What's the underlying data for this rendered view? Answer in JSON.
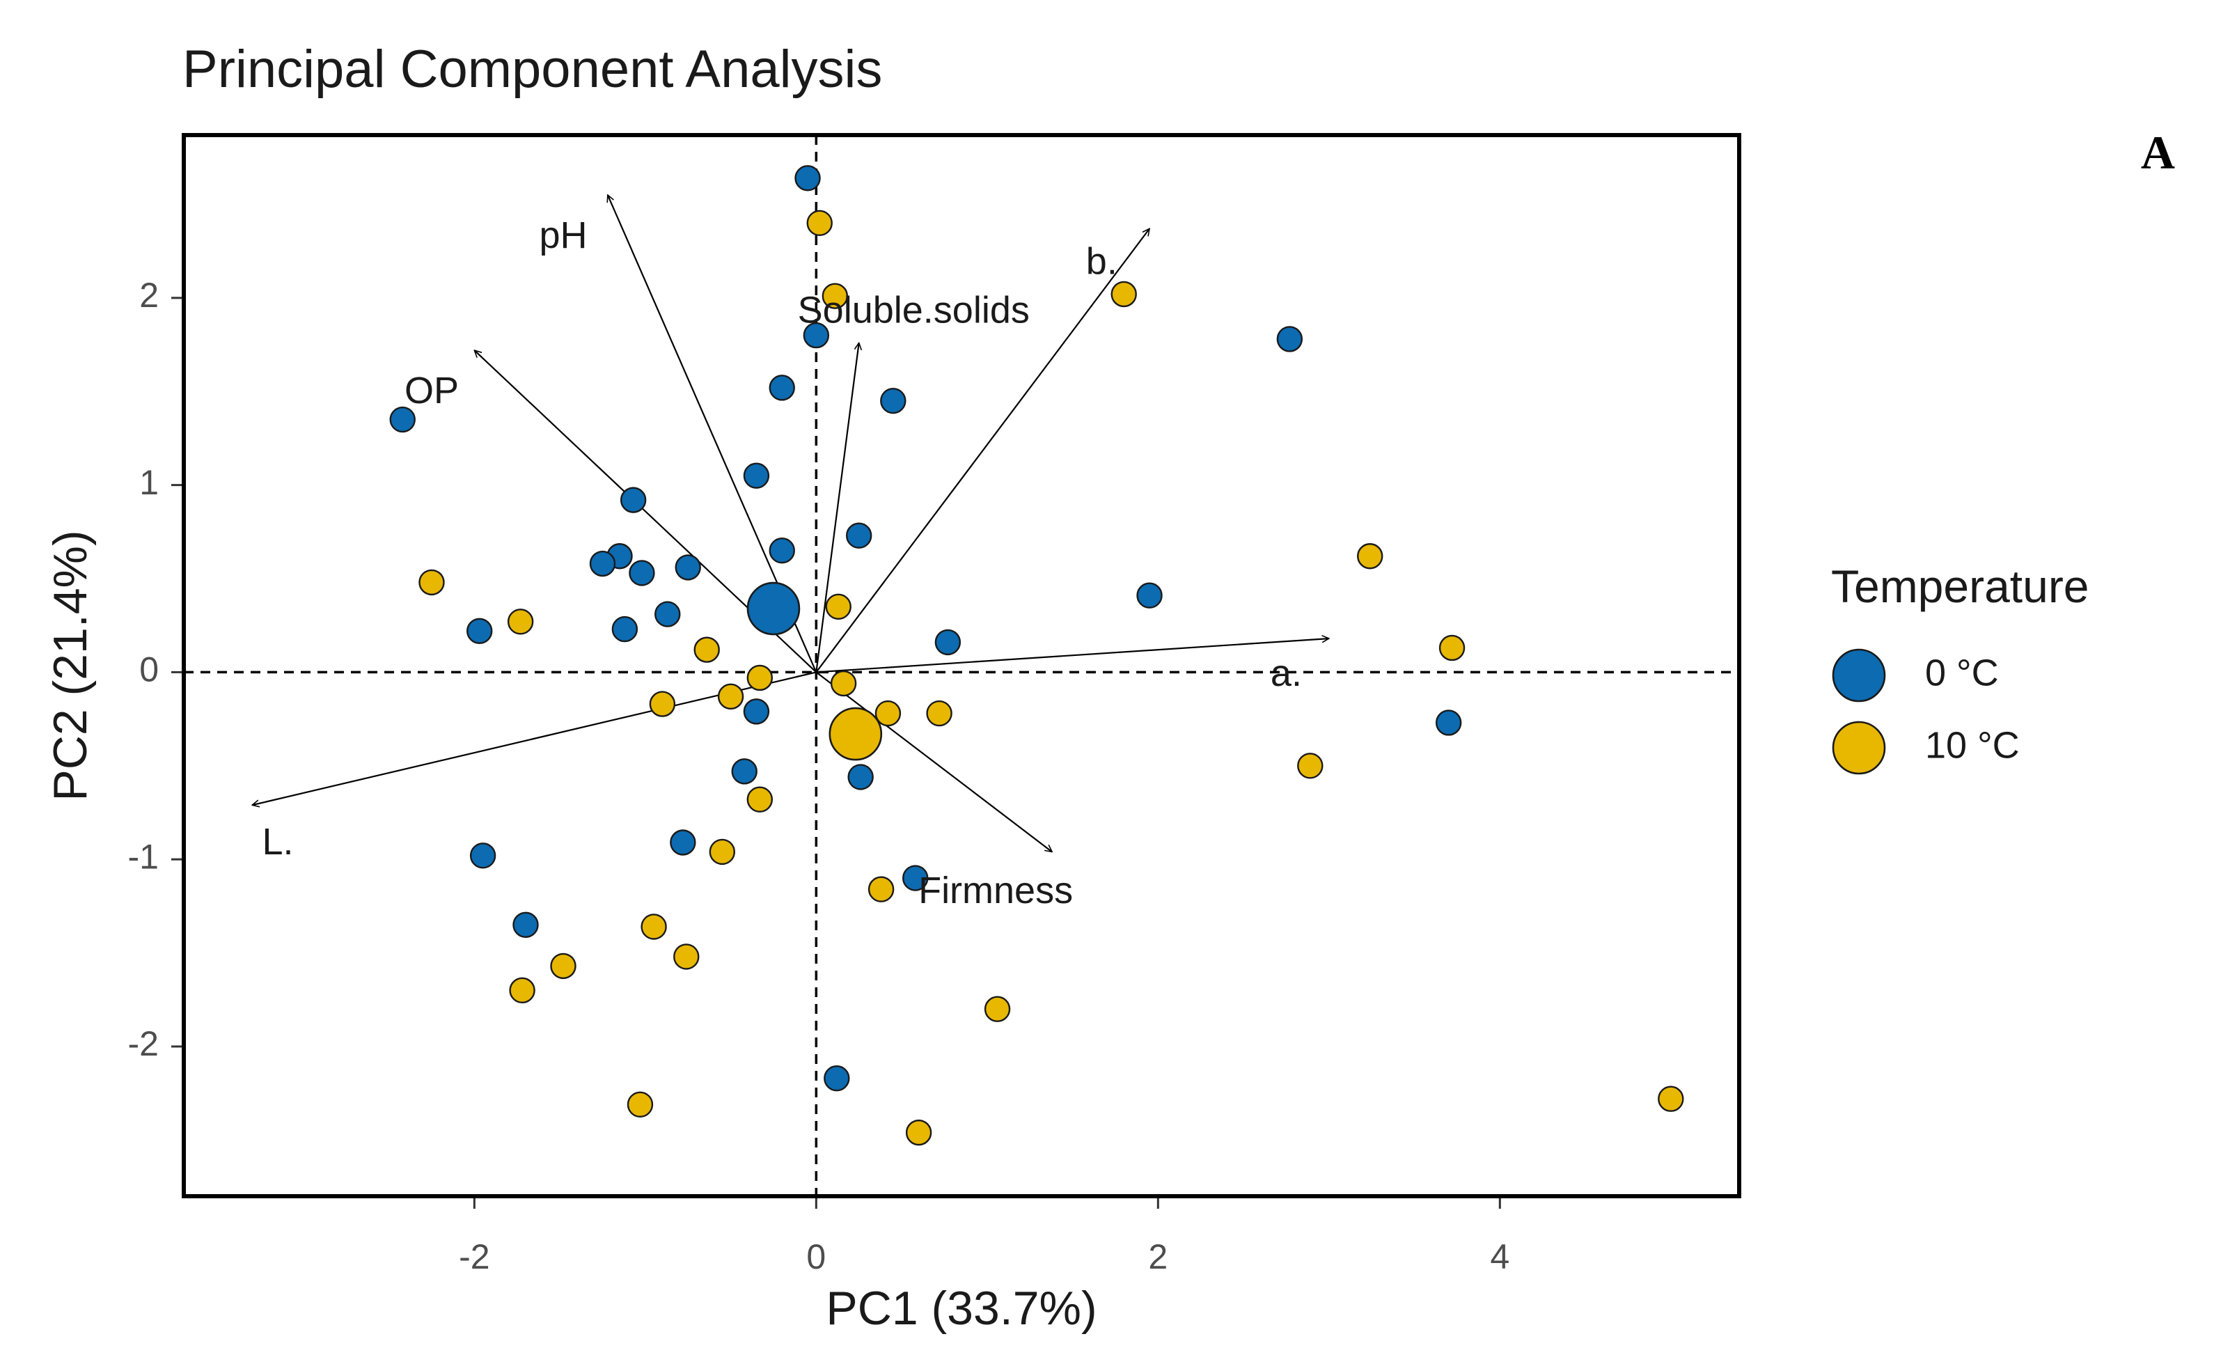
{
  "chart_data": {
    "type": "scatter",
    "title": "Principal Component Analysis",
    "panel_label": "A",
    "xlabel": "PC1 (33.7%)",
    "ylabel": "PC2 (21.4%)",
    "xlim": [
      -3.7,
      5.4
    ],
    "ylim": [
      -2.8,
      2.87
    ],
    "xticks": [
      -2,
      0,
      2,
      4
    ],
    "xtick_labels": [
      "-2",
      "0",
      "2",
      "4"
    ],
    "yticks": [
      -2,
      -1,
      0,
      1,
      2
    ],
    "ytick_labels": [
      "-2",
      "-1",
      "0",
      "1",
      "2"
    ],
    "grid": false,
    "reference_lines": {
      "x": 0,
      "y": 0,
      "style": "dashed"
    },
    "legend": {
      "title": "Temperature",
      "position": "right",
      "entries": [
        {
          "label": "0 °C",
          "color": "#0C6BB1"
        },
        {
          "label": "10 °C",
          "color": "#E8B700"
        }
      ]
    },
    "series": [
      {
        "name": "0 °C",
        "color": "#0C6BB1",
        "points": [
          [
            -0.05,
            2.64
          ],
          [
            0.0,
            1.8
          ],
          [
            -0.2,
            1.52
          ],
          [
            0.45,
            1.45
          ],
          [
            -0.35,
            1.05
          ],
          [
            -1.07,
            0.92
          ],
          [
            -0.2,
            0.65
          ],
          [
            0.25,
            0.73
          ],
          [
            -0.75,
            0.56
          ],
          [
            -1.15,
            0.62
          ],
          [
            -1.25,
            0.58
          ],
          [
            -1.02,
            0.53
          ],
          [
            -0.87,
            0.31
          ],
          [
            -1.12,
            0.23
          ],
          [
            -1.97,
            0.22
          ],
          [
            -2.42,
            1.35
          ],
          [
            0.77,
            0.16
          ],
          [
            -0.35,
            -0.21
          ],
          [
            -0.42,
            -0.53
          ],
          [
            0.26,
            -0.56
          ],
          [
            -0.78,
            -0.91
          ],
          [
            -1.95,
            -0.98
          ],
          [
            0.58,
            -1.1
          ],
          [
            -1.7,
            -1.35
          ],
          [
            0.12,
            -2.17
          ],
          [
            1.95,
            0.41
          ],
          [
            2.77,
            1.78
          ],
          [
            3.7,
            -0.27
          ]
        ],
        "centroid": [
          -0.25,
          0.34
        ]
      },
      {
        "name": "10 °C",
        "color": "#E8B700",
        "points": [
          [
            0.02,
            2.4
          ],
          [
            0.11,
            2.01
          ],
          [
            1.8,
            2.02
          ],
          [
            -2.25,
            0.48
          ],
          [
            -1.73,
            0.27
          ],
          [
            0.13,
            0.35
          ],
          [
            -0.64,
            0.12
          ],
          [
            -0.33,
            -0.03
          ],
          [
            -0.9,
            -0.17
          ],
          [
            -0.5,
            -0.13
          ],
          [
            0.16,
            -0.06
          ],
          [
            0.42,
            -0.22
          ],
          [
            0.72,
            -0.22
          ],
          [
            3.24,
            0.62
          ],
          [
            3.72,
            0.13
          ],
          [
            2.89,
            -0.5
          ],
          [
            -0.33,
            -0.68
          ],
          [
            -0.55,
            -0.96
          ],
          [
            0.38,
            -1.16
          ],
          [
            -0.95,
            -1.36
          ],
          [
            -0.76,
            -1.52
          ],
          [
            -1.48,
            -1.57
          ],
          [
            -1.72,
            -1.7
          ],
          [
            1.06,
            -1.8
          ],
          [
            -1.03,
            -2.31
          ],
          [
            0.6,
            -2.46
          ],
          [
            5.0,
            -2.28
          ]
        ],
        "centroid": [
          0.23,
          -0.33
        ]
      }
    ],
    "loadings": [
      {
        "variable": "pH",
        "x": -1.22,
        "y": 2.55
      },
      {
        "variable": "b.",
        "x": 1.95,
        "y": 2.37
      },
      {
        "variable": "Soluble.solids",
        "x": 0.25,
        "y": 1.76
      },
      {
        "variable": "OP",
        "x": -2.0,
        "y": 1.72
      },
      {
        "variable": "a.",
        "x": 3.0,
        "y": 0.18
      },
      {
        "variable": "L.",
        "x": -3.3,
        "y": -0.71
      },
      {
        "variable": "Firmness",
        "x": 1.38,
        "y": -0.96
      }
    ],
    "loading_label_positions": [
      {
        "variable": "pH",
        "x": -1.48,
        "y": 2.32
      },
      {
        "variable": "b.",
        "x": 1.67,
        "y": 2.18
      },
      {
        "variable": "Soluble.solids",
        "x": 0.57,
        "y": 1.92
      },
      {
        "variable": "OP",
        "x": -2.25,
        "y": 1.49
      },
      {
        "variable": "a.",
        "x": 2.75,
        "y": -0.02
      },
      {
        "variable": "L.",
        "x": -3.15,
        "y": -0.92
      },
      {
        "variable": "Firmness",
        "x": 1.05,
        "y": -1.18
      }
    ]
  }
}
